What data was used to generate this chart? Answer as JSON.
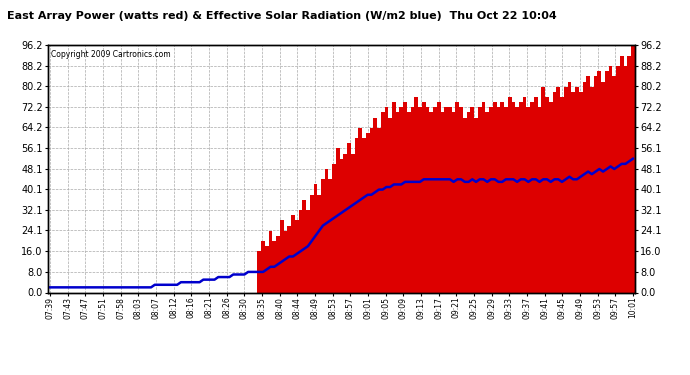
{
  "title": "East Array Power (watts red) & Effective Solar Radiation (W/m2 blue)  Thu Oct 22 10:04",
  "copyright": "Copyright 2009 Cartronics.com",
  "yticks": [
    0.0,
    8.0,
    16.0,
    24.1,
    32.1,
    40.1,
    48.1,
    56.1,
    64.2,
    72.2,
    80.2,
    88.2,
    96.2
  ],
  "ylim": [
    0,
    96.2
  ],
  "bar_color": "#dd0000",
  "line_color": "#0000cc",
  "bg_color": "#ffffff",
  "grid_color": "#aaaaaa",
  "xtick_labels": [
    "07:39",
    "07:43",
    "07:47",
    "07:51",
    "07:58",
    "08:03",
    "08:07",
    "08:12",
    "08:16",
    "08:21",
    "08:26",
    "08:30",
    "08:35",
    "08:40",
    "08:44",
    "08:49",
    "08:53",
    "08:57",
    "09:01",
    "09:05",
    "09:09",
    "09:13",
    "09:17",
    "09:21",
    "09:25",
    "09:29",
    "09:33",
    "09:37",
    "09:41",
    "09:45",
    "09:49",
    "09:53",
    "09:57",
    "10:01"
  ],
  "bar_values": [
    0,
    0,
    0,
    0,
    0,
    0,
    0,
    0,
    0,
    0,
    0,
    0,
    0,
    0,
    0,
    0,
    0,
    0,
    0,
    0,
    0,
    0,
    0,
    0,
    0,
    0,
    0,
    0,
    0,
    0,
    0,
    0,
    0,
    0,
    0,
    0,
    0,
    0,
    0,
    0,
    0,
    0,
    0,
    0,
    0,
    0,
    0,
    0,
    0,
    0,
    0,
    0,
    0,
    0,
    0,
    0,
    16,
    20,
    18,
    24,
    20,
    22,
    28,
    24,
    26,
    30,
    28,
    32,
    36,
    32,
    38,
    42,
    38,
    44,
    48,
    44,
    50,
    56,
    52,
    54,
    58,
    54,
    60,
    64,
    60,
    62,
    64,
    68,
    64,
    70,
    72,
    68,
    74,
    70,
    72,
    74,
    70,
    72,
    76,
    72,
    74,
    72,
    70,
    72,
    74,
    70,
    72,
    72,
    70,
    74,
    72,
    68,
    70,
    72,
    68,
    72,
    74,
    70,
    72,
    74,
    72,
    74,
    72,
    76,
    74,
    72,
    74,
    76,
    72,
    74,
    76,
    72,
    80,
    76,
    74,
    78,
    80,
    76,
    80,
    82,
    78,
    80,
    78,
    82,
    84,
    80,
    84,
    86,
    82,
    86,
    88,
    84,
    88,
    92,
    88,
    92,
    96
  ],
  "line_values": [
    2,
    2,
    2,
    2,
    2,
    2,
    2,
    2,
    2,
    2,
    2,
    2,
    2,
    2,
    2,
    2,
    2,
    2,
    2,
    2,
    2,
    2,
    2,
    2,
    2,
    2,
    2,
    2,
    3,
    3,
    3,
    3,
    3,
    3,
    3,
    4,
    4,
    4,
    4,
    4,
    4,
    5,
    5,
    5,
    5,
    6,
    6,
    6,
    6,
    7,
    7,
    7,
    7,
    8,
    8,
    8,
    8,
    8,
    9,
    10,
    10,
    11,
    12,
    13,
    14,
    14,
    15,
    16,
    17,
    18,
    20,
    22,
    24,
    26,
    27,
    28,
    29,
    30,
    31,
    32,
    33,
    34,
    35,
    36,
    37,
    38,
    38,
    39,
    40,
    40,
    41,
    41,
    42,
    42,
    42,
    43,
    43,
    43,
    43,
    43,
    44,
    44,
    44,
    44,
    44,
    44,
    44,
    44,
    43,
    44,
    44,
    43,
    43,
    44,
    43,
    44,
    44,
    43,
    44,
    44,
    43,
    43,
    44,
    44,
    44,
    43,
    44,
    44,
    43,
    44,
    44,
    43,
    44,
    44,
    43,
    44,
    44,
    43,
    44,
    45,
    44,
    44,
    45,
    46,
    47,
    46,
    47,
    48,
    47,
    48,
    49,
    48,
    49,
    50,
    50,
    51,
    52
  ]
}
